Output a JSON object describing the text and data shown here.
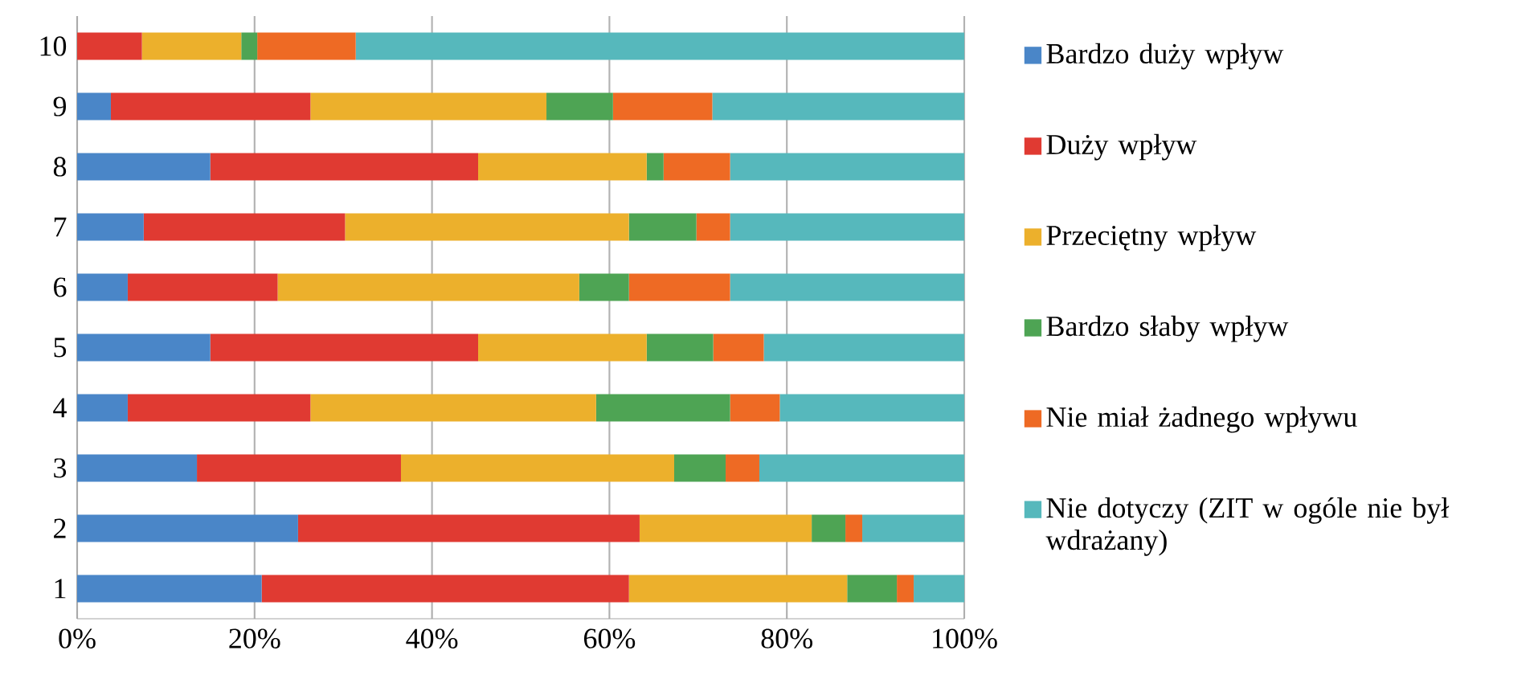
{
  "chart_data": {
    "type": "bar",
    "orientation": "horizontal",
    "stacked": true,
    "categories": [
      "10",
      "9",
      "8",
      "7",
      "6",
      "5",
      "4",
      "3",
      "2",
      "1"
    ],
    "series": [
      {
        "name": "Bardzo duży wpływ",
        "color": "#4a86c8",
        "values": [
          0,
          3.8,
          15.0,
          7.5,
          5.7,
          15.0,
          5.7,
          13.5,
          24.9,
          20.8
        ]
      },
      {
        "name": "Duży wpływ",
        "color": "#e03a32",
        "values": [
          7.3,
          22.5,
          30.2,
          22.7,
          16.9,
          30.2,
          20.6,
          23.0,
          38.5,
          41.4
        ]
      },
      {
        "name": "Przeciętny wpływ",
        "color": "#ecb02c",
        "values": [
          11.2,
          26.6,
          19.0,
          32.0,
          34.0,
          19.0,
          32.2,
          30.8,
          19.4,
          24.6
        ]
      },
      {
        "name": "Bardzo słaby wpływ",
        "color": "#4ea454",
        "values": [
          1.8,
          7.5,
          1.9,
          7.6,
          5.6,
          7.5,
          15.1,
          5.8,
          3.8,
          5.6
        ]
      },
      {
        "name": "Nie miał żadnego wpływu",
        "color": "#ee6a24",
        "values": [
          11.1,
          11.2,
          7.5,
          3.8,
          11.4,
          5.7,
          5.6,
          3.8,
          1.9,
          1.9
        ]
      },
      {
        "name": "Nie dotyczy (ZIT w ogóle nie był wdrażany)",
        "color": "#56b8bc",
        "values": [
          68.6,
          28.4,
          26.4,
          26.4,
          26.4,
          22.6,
          20.8,
          23.1,
          11.5,
          5.7
        ]
      }
    ],
    "xlim": [
      0,
      100
    ],
    "xticks": [
      {
        "value": 0,
        "label": "0%"
      },
      {
        "value": 20,
        "label": "20%"
      },
      {
        "value": 40,
        "label": "40%"
      },
      {
        "value": 60,
        "label": "60%"
      },
      {
        "value": 80,
        "label": "80%"
      },
      {
        "value": 100,
        "label": "100%"
      }
    ],
    "grid": "x",
    "legend": "right"
  }
}
